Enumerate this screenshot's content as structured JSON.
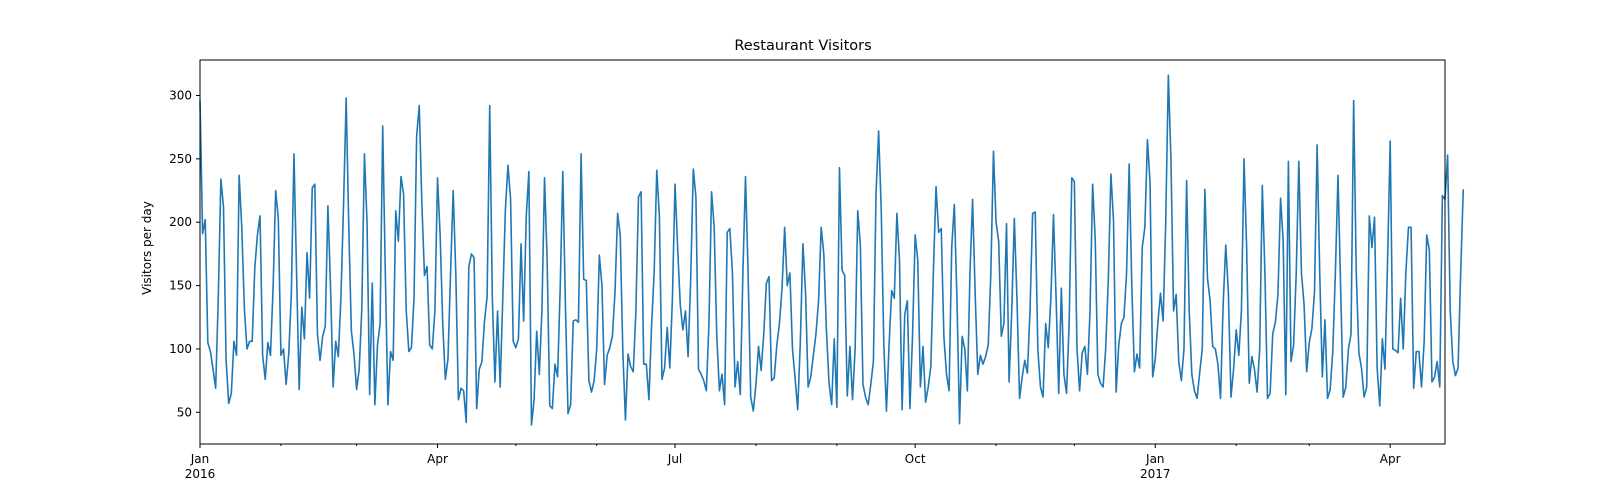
{
  "chart_data": {
    "type": "line",
    "title": "Restaurant Visitors",
    "xlabel": "",
    "ylabel": "Visitors per day",
    "x_range": [
      "2016-01-01",
      "2017-04-22"
    ],
    "ylim": [
      25,
      328
    ],
    "y_ticks": [
      50,
      100,
      150,
      200,
      250,
      300
    ],
    "x_ticks_major": [
      {
        "date": "2016-01-01",
        "label": "Jan",
        "sublabel": "2016"
      },
      {
        "date": "2016-04-01",
        "label": "Apr",
        "sublabel": ""
      },
      {
        "date": "2016-07-01",
        "label": "Jul",
        "sublabel": ""
      },
      {
        "date": "2016-10-01",
        "label": "Oct",
        "sublabel": ""
      },
      {
        "date": "2017-01-01",
        "label": "Jan",
        "sublabel": "2017"
      },
      {
        "date": "2017-04-01",
        "label": "Apr",
        "sublabel": ""
      }
    ],
    "x_ticks_minor": [
      "2016-02-01",
      "2016-03-01",
      "2016-05-01",
      "2016-06-01",
      "2016-08-01",
      "2016-09-01",
      "2016-11-01",
      "2016-12-01",
      "2017-02-01",
      "2017-03-01"
    ],
    "grid": false,
    "series": [
      {
        "name": "",
        "color": "#1f77b4",
        "start_date": "2016-01-01",
        "interval_days": 1,
        "values": [
          296,
          191,
          202,
          105,
          98,
          84,
          69,
          140,
          234,
          212,
          91,
          57,
          65,
          106,
          95,
          237,
          196,
          132,
          100,
          106,
          106,
          164,
          190,
          205,
          95,
          76,
          105,
          95,
          148,
          225,
          203,
          95,
          100,
          72,
          96,
          144,
          254,
          160,
          68,
          133,
          108,
          176,
          140,
          227,
          230,
          112,
          91,
          110,
          118,
          213,
          150,
          70,
          106,
          94,
          141,
          214,
          298,
          196,
          114,
          96,
          68,
          84,
          132,
          254,
          200,
          64,
          152,
          56,
          103,
          120,
          276,
          160,
          56,
          98,
          91,
          209,
          185,
          236,
          222,
          131,
          98,
          101,
          140,
          268,
          292,
          215,
          158,
          165,
          103,
          100,
          130,
          235,
          190,
          120,
          76,
          92,
          160,
          225,
          160,
          60,
          69,
          67,
          42,
          165,
          175,
          172,
          53,
          84,
          90,
          122,
          141,
          292,
          140,
          74,
          130,
          70,
          140,
          210,
          245,
          218,
          106,
          101,
          108,
          183,
          122,
          205,
          240,
          40,
          60,
          114,
          80,
          130,
          235,
          170,
          55,
          53,
          88,
          78,
          148,
          240,
          135,
          49,
          56,
          122,
          123,
          121,
          254,
          155,
          154,
          75,
          66,
          75,
          100,
          174,
          150,
          72,
          95,
          101,
          110,
          145,
          207,
          190,
          98,
          44,
          96,
          86,
          82,
          130,
          220,
          224,
          88,
          88,
          60,
          118,
          160,
          241,
          205,
          76,
          85,
          117,
          85,
          140,
          230,
          180,
          135,
          115,
          130,
          94,
          155,
          242,
          220,
          84,
          80,
          75,
          67,
          120,
          224,
          196,
          110,
          67,
          80,
          56,
          192,
          195,
          160,
          70,
          90,
          64,
          160,
          236,
          160,
          62,
          51,
          72,
          102,
          83,
          112,
          152,
          157,
          75,
          77,
          103,
          120,
          148,
          196,
          150,
          160,
          100,
          77,
          52,
          105,
          183,
          145,
          70,
          78,
          95,
          112,
          138,
          196,
          175,
          115,
          73,
          56,
          108,
          54,
          243,
          162,
          158,
          63,
          102,
          60,
          100,
          209,
          182,
          72,
          62,
          56,
          72,
          90,
          222,
          272,
          210,
          103,
          51,
          103,
          146,
          140,
          207,
          170,
          52,
          127,
          138,
          53,
          111,
          190,
          170,
          70,
          102,
          58,
          70,
          86,
          162,
          228,
          192,
          195,
          110,
          80,
          67,
          180,
          214,
          141,
          41,
          110,
          100,
          67,
          160,
          218,
          143,
          80,
          95,
          88,
          94,
          103,
          160,
          256,
          200,
          185,
          110,
          120,
          199,
          74,
          130,
          203,
          140,
          61,
          78,
          91,
          81,
          130,
          207,
          208,
          100,
          70,
          62,
          120,
          101,
          140,
          206,
          140,
          65,
          148,
          80,
          65,
          120,
          235,
          232,
          100,
          67,
          97,
          102,
          80,
          130,
          230,
          186,
          80,
          73,
          70,
          100,
          155,
          238,
          201,
          66,
          103,
          120,
          125,
          160,
          246,
          150,
          82,
          96,
          85,
          180,
          196,
          265,
          231,
          78,
          92,
          121,
          144,
          122,
          200,
          316,
          250,
          130,
          143,
          90,
          75,
          100,
          233,
          130,
          80,
          67,
          61,
          81,
          100,
          226,
          156,
          138,
          102,
          100,
          88,
          61,
          135,
          182,
          145,
          62,
          84,
          115,
          95,
          130,
          250,
          180,
          73,
          94,
          84,
          66,
          100,
          229,
          160,
          61,
          65,
          112,
          121,
          143,
          219,
          185,
          64,
          248,
          90,
          103,
          160,
          248,
          160,
          135,
          82,
          105,
          116,
          145,
          261,
          160,
          78,
          123,
          61,
          68,
          98,
          160,
          237,
          150,
          62,
          70,
          100,
          112,
          296,
          160,
          97,
          85,
          62,
          70,
          205,
          180,
          204,
          85,
          55,
          108,
          84,
          170,
          264,
          100,
          99,
          97,
          140,
          100,
          160,
          196,
          196,
          69,
          98,
          98,
          70,
          105,
          190,
          178,
          74,
          78,
          90,
          70,
          221,
          218,
          253,
          130,
          90,
          79,
          85,
          160,
          226
        ]
      }
    ]
  }
}
